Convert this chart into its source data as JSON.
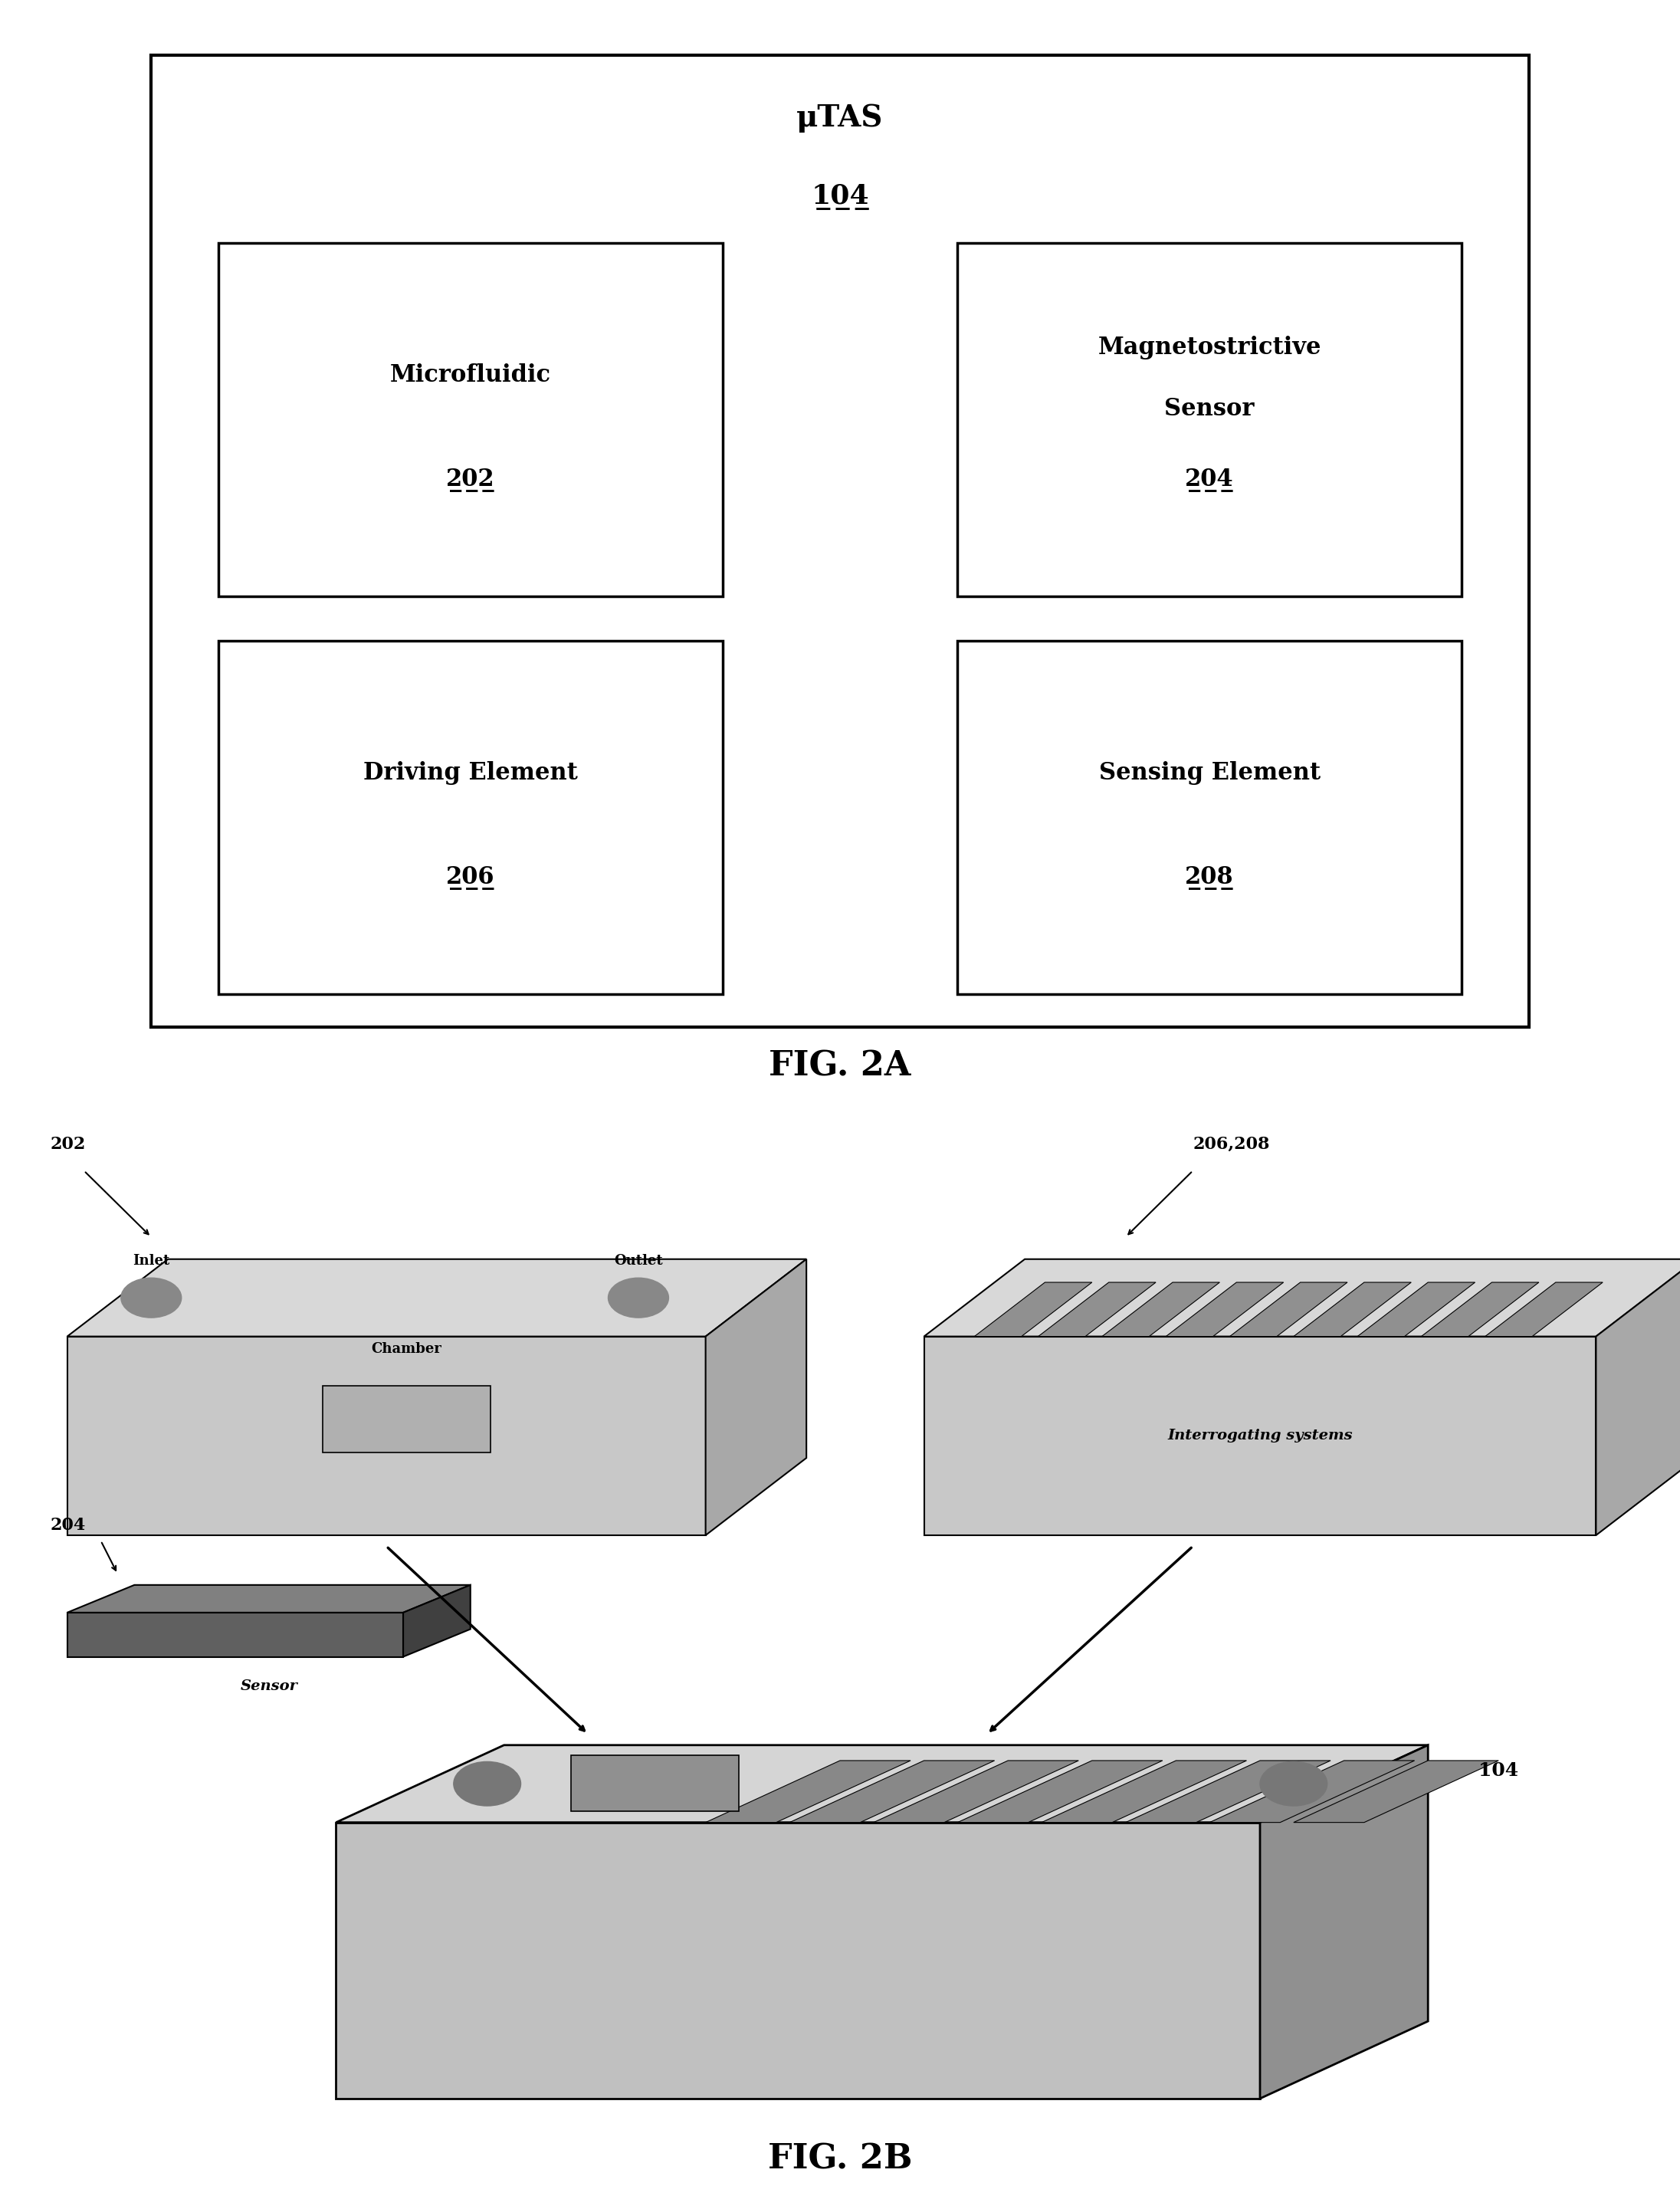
{
  "bg_color": "#ffffff",
  "fig_title": "FIG. 2A",
  "fig_title2": "FIG. 2B",
  "outer_box": {
    "label": "μTAS",
    "ref": "104"
  },
  "inner_boxes": [
    {
      "label": "Microfluidic",
      "ref": "202",
      "row": 0,
      "col": 0
    },
    {
      "label": "Magnetostrictive\nSensor",
      "ref": "204",
      "row": 0,
      "col": 1
    },
    {
      "label": "Driving Element",
      "ref": "206",
      "row": 1,
      "col": 0
    },
    {
      "label": "Sensing Element",
      "ref": "208",
      "row": 1,
      "col": 1
    }
  ],
  "font_family": "serif"
}
